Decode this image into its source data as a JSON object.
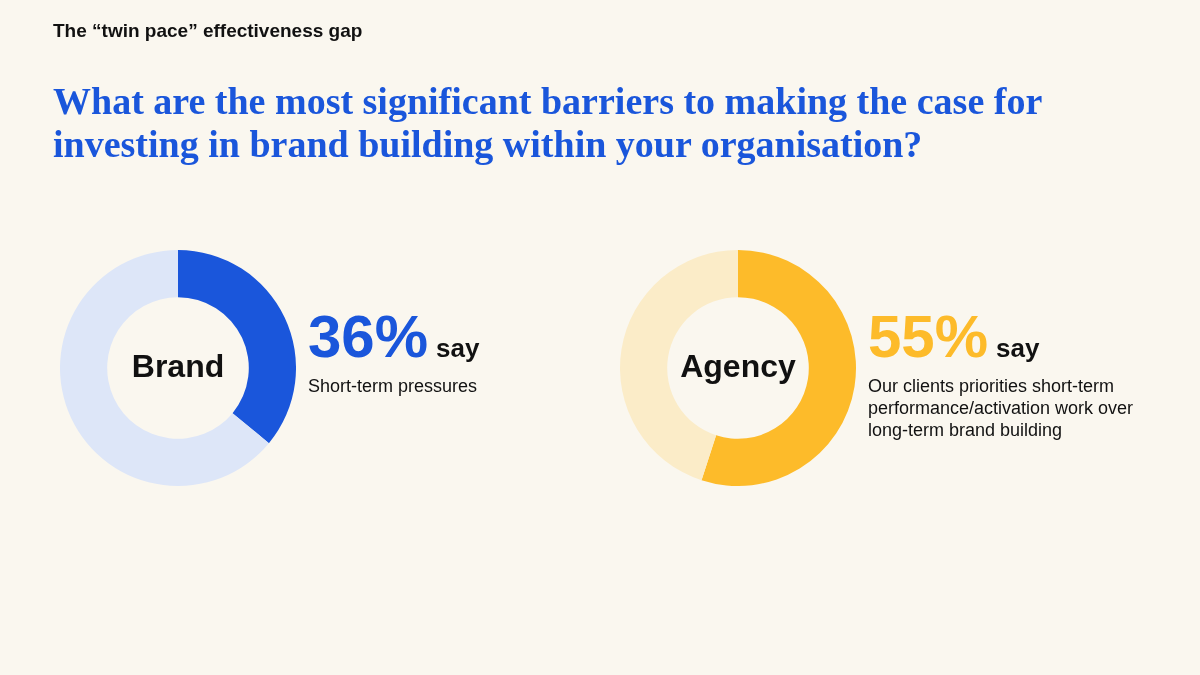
{
  "chart_data": [
    {
      "type": "other",
      "title": "The “twin pace” effectiveness gap",
      "subtitle": "What are the most significant barriers to making the case for investing in brand building within your organisation?"
    },
    {
      "type": "donut",
      "title": "Brand",
      "categories": [
        null,
        null
      ],
      "values": [
        36,
        64
      ],
      "colors": [
        "#1a56db",
        "#dde6f8"
      ],
      "value_labels": [
        "36%",
        null
      ],
      "annotations": [
        "say",
        "Short-term pressures"
      ],
      "legend": false
    },
    {
      "type": "donut",
      "title": "Agency",
      "categories": [
        null,
        null
      ],
      "values": [
        55,
        45
      ],
      "colors": [
        "#fdbb2a",
        "#fbecc8"
      ],
      "value_labels": [
        "55%",
        null
      ],
      "annotations": [
        "say",
        "Our clients priorities short-term performance/activation work over long-term brand building"
      ],
      "legend": false
    }
  ]
}
